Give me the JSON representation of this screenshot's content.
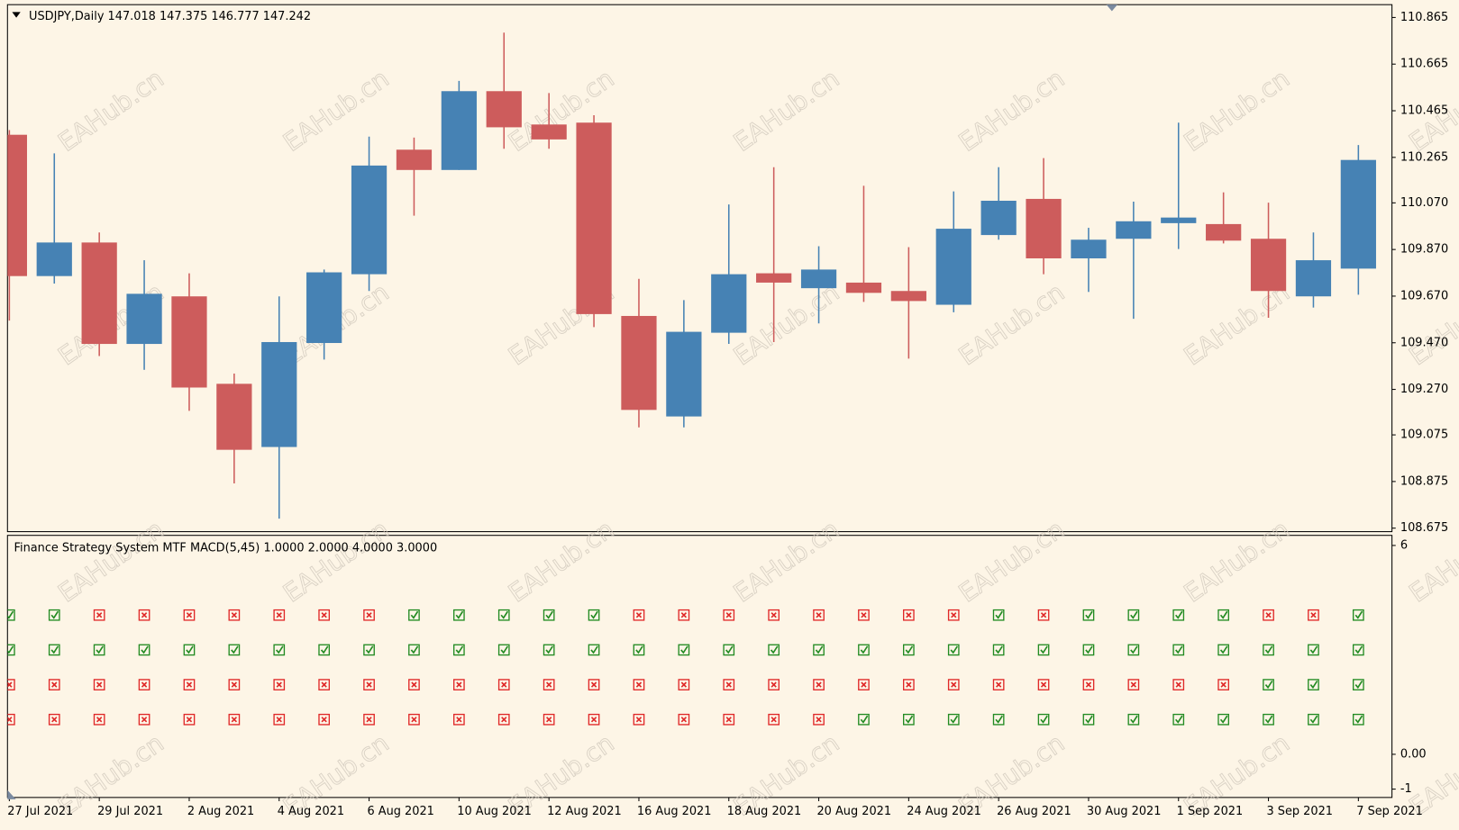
{
  "watermark": "EAHub.cn",
  "chart_data": [
    {
      "type": "candlestick",
      "title": "USDJPY,Daily  147.018 147.375 146.777 147.242",
      "categories": [
        "27 Jul 2021",
        null,
        "29 Jul 2021",
        null,
        "2 Aug 2021",
        null,
        "4 Aug 2021",
        null,
        "6 Aug 2021",
        null,
        "10 Aug 2021",
        null,
        "12 Aug 2021",
        null,
        "16 Aug 2021",
        null,
        "18 Aug 2021",
        null,
        "20 Aug 2021",
        null,
        "24 Aug 2021",
        null,
        "26 Aug 2021",
        null,
        "30 Aug 2021",
        null,
        "1 Sep 2021",
        null,
        "3 Sep 2021",
        null,
        "7 Sep 2021"
      ],
      "open": [
        110.362,
        109.756,
        109.9,
        109.465,
        109.669,
        109.294,
        109.023,
        109.469,
        109.764,
        110.298,
        110.211,
        110.549,
        110.406,
        110.414,
        109.585,
        109.154,
        109.513,
        109.768,
        109.704,
        109.728,
        109.692,
        109.633,
        109.932,
        110.087,
        109.832,
        109.916,
        109.983,
        109.979,
        109.916,
        109.669,
        109.788
      ],
      "high": [
        110.382,
        110.282,
        109.943,
        109.824,
        109.768,
        109.338,
        109.669,
        109.784,
        110.354,
        110.35,
        110.593,
        110.8,
        110.541,
        110.446,
        109.744,
        109.653,
        110.063,
        110.223,
        109.884,
        110.143,
        109.88,
        110.119,
        110.223,
        110.262,
        109.963,
        110.075,
        110.414,
        110.115,
        110.071,
        109.943,
        110.318
      ],
      "low": [
        109.565,
        109.724,
        109.413,
        109.354,
        109.178,
        108.867,
        108.716,
        109.398,
        109.692,
        110.015,
        110.211,
        110.302,
        110.302,
        109.537,
        109.107,
        109.107,
        109.465,
        109.473,
        109.553,
        109.645,
        109.402,
        109.601,
        109.912,
        109.764,
        109.688,
        109.573,
        109.872,
        109.896,
        109.577,
        109.621,
        109.676
      ],
      "close": [
        109.756,
        109.9,
        109.465,
        109.68,
        109.278,
        109.011,
        109.473,
        109.772,
        110.23,
        110.211,
        110.549,
        110.394,
        110.342,
        109.593,
        109.182,
        109.517,
        109.764,
        109.728,
        109.784,
        109.684,
        109.649,
        109.959,
        110.079,
        109.832,
        109.912,
        109.991,
        110.007,
        109.908,
        109.692,
        109.824,
        110.254
      ],
      "up_color": "#4682b4",
      "down_color": "#cd5c5c",
      "ylim": [
        108.66,
        110.92
      ],
      "yticks": [
        110.865,
        110.665,
        110.465,
        110.265,
        {
          "value": 110.07,
          "label": "110.070"
        },
        {
          "value": 109.87,
          "label": "109.870"
        },
        {
          "value": 109.67,
          "label": "109.670"
        },
        {
          "value": 109.47,
          "label": "109.470"
        },
        {
          "value": 109.27,
          "label": "109.270"
        },
        109.075,
        108.875,
        108.675
      ]
    },
    {
      "type": "signal",
      "title": "Finance Strategy System MTF MACD(5,45) 1.0000 2.0000 4.0000 3.0000",
      "up_color": "#228b22",
      "down_color": "#e02828",
      "ylim": [
        -1.24,
        6.29
      ],
      "yticks": [
        6,
        {
          "value": 0,
          "label": "0.00"
        },
        -1
      ],
      "series": [
        {
          "values": [
            4,
            4,
            4,
            4,
            4,
            4,
            4,
            4,
            4,
            4,
            4,
            4,
            4,
            4,
            4,
            4,
            4,
            4,
            4,
            4,
            4,
            4,
            4,
            4,
            4,
            4,
            4,
            4,
            4,
            4,
            4
          ],
          "bullish": [
            true,
            true,
            false,
            false,
            false,
            false,
            false,
            false,
            false,
            true,
            true,
            true,
            true,
            true,
            false,
            false,
            false,
            false,
            false,
            false,
            false,
            false,
            true,
            false,
            true,
            true,
            true,
            true,
            false,
            false,
            true
          ]
        },
        {
          "values": [
            3,
            3,
            3,
            3,
            3,
            3,
            3,
            3,
            3,
            3,
            3,
            3,
            3,
            3,
            3,
            3,
            3,
            3,
            3,
            3,
            3,
            3,
            3,
            3,
            3,
            3,
            3,
            3,
            3,
            3,
            3
          ],
          "bullish": [
            true,
            true,
            true,
            true,
            true,
            true,
            true,
            true,
            true,
            true,
            true,
            true,
            true,
            true,
            true,
            true,
            true,
            true,
            true,
            true,
            true,
            true,
            true,
            true,
            true,
            true,
            true,
            true,
            true,
            true,
            true
          ]
        },
        {
          "values": [
            2,
            2,
            2,
            2,
            2,
            2,
            2,
            2,
            2,
            2,
            2,
            2,
            2,
            2,
            2,
            2,
            2,
            2,
            2,
            2,
            2,
            2,
            2,
            2,
            2,
            2,
            2,
            2,
            2,
            2,
            2
          ],
          "bullish": [
            false,
            false,
            false,
            false,
            false,
            false,
            false,
            false,
            false,
            false,
            false,
            false,
            false,
            false,
            false,
            false,
            false,
            false,
            false,
            false,
            false,
            false,
            false,
            false,
            false,
            false,
            false,
            false,
            true,
            true,
            true
          ]
        },
        {
          "values": [
            1,
            1,
            1,
            1,
            1,
            1,
            1,
            1,
            1,
            1,
            1,
            1,
            1,
            1,
            1,
            1,
            1,
            1,
            1,
            1,
            1,
            1,
            1,
            1,
            1,
            1,
            1,
            1,
            1,
            1,
            1
          ],
          "bullish": [
            false,
            false,
            false,
            false,
            false,
            false,
            false,
            false,
            false,
            false,
            false,
            false,
            false,
            false,
            false,
            false,
            false,
            false,
            false,
            true,
            true,
            true,
            true,
            true,
            true,
            true,
            true,
            true,
            true,
            true,
            true
          ]
        }
      ]
    }
  ]
}
